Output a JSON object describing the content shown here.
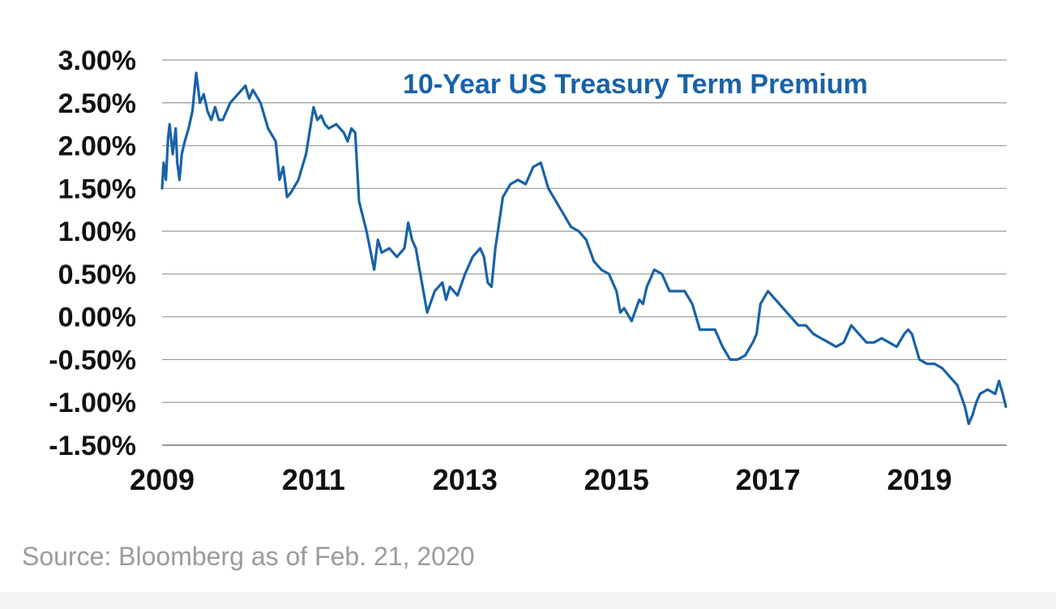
{
  "source_note": "Source: Bloomberg as of Feb. 21, 2020",
  "colors": {
    "series": "#1862a8",
    "title": "#1862a8",
    "text": "#111111",
    "grid": "#9a9a9a",
    "source": "#9b9b9b"
  },
  "chart_data": {
    "type": "line",
    "title": "10-Year US Treasury Term Premium",
    "xlabel": "",
    "ylabel": "",
    "grid": true,
    "legend": "none",
    "xlim": [
      2009.0,
      2020.15
    ],
    "ylim": [
      -1.5,
      3.0
    ],
    "y_ticks": [
      3.0,
      2.5,
      2.0,
      1.5,
      1.0,
      0.5,
      0.0,
      -0.5,
      -1.0,
      -1.5
    ],
    "y_tick_labels": [
      "3.00%",
      "2.50%",
      "2.00%",
      "1.50%",
      "1.00%",
      "0.50%",
      "0.00%",
      "-0.50%",
      "-1.00%",
      "-1.50%"
    ],
    "x_ticks": [
      2009,
      2011,
      2013,
      2015,
      2017,
      2019
    ],
    "x_tick_labels": [
      "2009",
      "2011",
      "2013",
      "2015",
      "2017",
      "2019"
    ],
    "series": [
      {
        "name": "10-Year US Treasury Term Premium",
        "x": [
          2009.0,
          2009.02,
          2009.05,
          2009.08,
          2009.1,
          2009.14,
          2009.18,
          2009.2,
          2009.23,
          2009.26,
          2009.3,
          2009.35,
          2009.4,
          2009.45,
          2009.5,
          2009.55,
          2009.6,
          2009.65,
          2009.7,
          2009.75,
          2009.8,
          2009.9,
          2010.0,
          2010.1,
          2010.15,
          2010.2,
          2010.3,
          2010.4,
          2010.5,
          2010.55,
          2010.6,
          2010.65,
          2010.7,
          2010.8,
          2010.9,
          2011.0,
          2011.05,
          2011.1,
          2011.15,
          2011.2,
          2011.3,
          2011.4,
          2011.45,
          2011.5,
          2011.55,
          2011.6,
          2011.7,
          2011.8,
          2011.85,
          2011.9,
          2012.0,
          2012.1,
          2012.2,
          2012.25,
          2012.3,
          2012.35,
          2012.4,
          2012.45,
          2012.5,
          2012.6,
          2012.7,
          2012.75,
          2012.8,
          2012.9,
          2013.0,
          2013.1,
          2013.2,
          2013.25,
          2013.3,
          2013.35,
          2013.4,
          2013.45,
          2013.5,
          2013.6,
          2013.7,
          2013.8,
          2013.9,
          2014.0,
          2014.1,
          2014.2,
          2014.3,
          2014.4,
          2014.5,
          2014.6,
          2014.7,
          2014.8,
          2014.9,
          2015.0,
          2015.05,
          2015.1,
          2015.2,
          2015.3,
          2015.35,
          2015.4,
          2015.5,
          2015.6,
          2015.7,
          2015.8,
          2015.9,
          2016.0,
          2016.1,
          2016.2,
          2016.3,
          2016.4,
          2016.5,
          2016.6,
          2016.7,
          2016.8,
          2016.85,
          2016.9,
          2017.0,
          2017.1,
          2017.2,
          2017.3,
          2017.4,
          2017.5,
          2017.6,
          2017.7,
          2017.8,
          2017.9,
          2018.0,
          2018.1,
          2018.15,
          2018.2,
          2018.3,
          2018.4,
          2018.5,
          2018.6,
          2018.7,
          2018.8,
          2018.85,
          2018.9,
          2019.0,
          2019.1,
          2019.2,
          2019.3,
          2019.4,
          2019.5,
          2019.6,
          2019.65,
          2019.7,
          2019.75,
          2019.8,
          2019.9,
          2020.0,
          2020.05,
          2020.1,
          2020.14
        ],
        "y": [
          1.5,
          1.8,
          1.6,
          2.1,
          2.25,
          1.9,
          2.2,
          1.8,
          1.6,
          1.9,
          2.05,
          2.2,
          2.4,
          2.85,
          2.5,
          2.6,
          2.4,
          2.3,
          2.45,
          2.3,
          2.3,
          2.5,
          2.6,
          2.7,
          2.55,
          2.65,
          2.5,
          2.2,
          2.05,
          1.6,
          1.75,
          1.4,
          1.45,
          1.6,
          1.9,
          2.45,
          2.3,
          2.35,
          2.25,
          2.2,
          2.25,
          2.15,
          2.05,
          2.2,
          2.15,
          1.35,
          1.0,
          0.55,
          0.9,
          0.75,
          0.8,
          0.7,
          0.8,
          1.1,
          0.9,
          0.8,
          0.55,
          0.3,
          0.05,
          0.3,
          0.4,
          0.2,
          0.35,
          0.25,
          0.5,
          0.7,
          0.8,
          0.7,
          0.4,
          0.35,
          0.8,
          1.1,
          1.4,
          1.55,
          1.6,
          1.55,
          1.75,
          1.8,
          1.5,
          1.35,
          1.2,
          1.05,
          1.0,
          0.9,
          0.65,
          0.55,
          0.5,
          0.3,
          0.05,
          0.1,
          -0.05,
          0.2,
          0.15,
          0.35,
          0.55,
          0.5,
          0.3,
          0.3,
          0.3,
          0.15,
          -0.15,
          -0.15,
          -0.15,
          -0.35,
          -0.5,
          -0.5,
          -0.45,
          -0.3,
          -0.2,
          0.15,
          0.3,
          0.2,
          0.1,
          0.0,
          -0.1,
          -0.1,
          -0.2,
          -0.25,
          -0.3,
          -0.35,
          -0.3,
          -0.1,
          -0.15,
          -0.2,
          -0.3,
          -0.3,
          -0.25,
          -0.3,
          -0.35,
          -0.2,
          -0.15,
          -0.2,
          -0.5,
          -0.55,
          -0.55,
          -0.6,
          -0.7,
          -0.8,
          -1.05,
          -1.25,
          -1.15,
          -1.0,
          -0.9,
          -0.85,
          -0.9,
          -0.75,
          -0.9,
          -1.05
        ]
      }
    ]
  }
}
